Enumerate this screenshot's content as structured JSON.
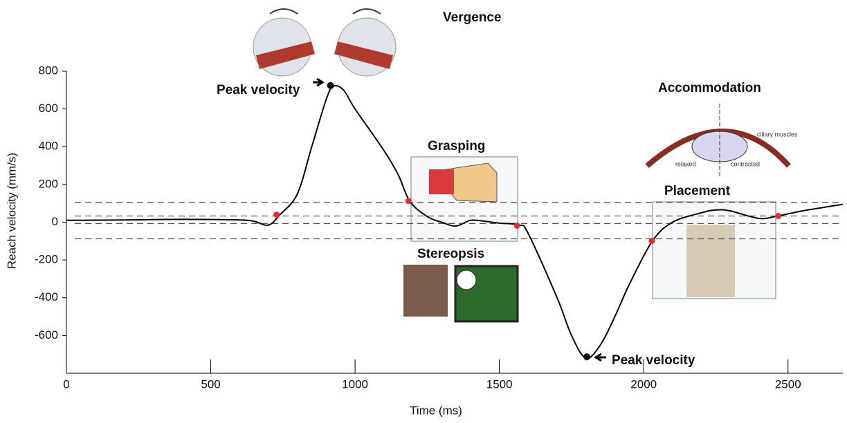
{
  "chart_data": {
    "type": "line",
    "xlabel": "Time (ms)",
    "ylabel": "Reach velocity (mm/s)",
    "xlim": [
      0,
      2690
    ],
    "ylim": [
      -800,
      800
    ],
    "xticks": [
      0,
      500,
      1000,
      1500,
      2000,
      2500
    ],
    "yticks": [
      800,
      600,
      400,
      200,
      0,
      -200,
      -400,
      -600
    ],
    "x": [
      0,
      200,
      400,
      600,
      650,
      700,
      740,
      800,
      850,
      900,
      925,
      960,
      1000,
      1100,
      1150,
      1190,
      1250,
      1300,
      1350,
      1400,
      1450,
      1500,
      1570,
      1600,
      1700,
      1750,
      1800,
      1850,
      1900,
      1950,
      2030,
      2100,
      2200,
      2250,
      2300,
      2400,
      2470,
      2550,
      2650,
      2690
    ],
    "series": [
      {
        "color": "#000000",
        "values": [
          10,
          12,
          15,
          12,
          5,
          -15,
          40,
          150,
          400,
          650,
          720,
          700,
          600,
          380,
          250,
          110,
          30,
          0,
          -20,
          10,
          5,
          -5,
          -15,
          -60,
          -400,
          -600,
          -720,
          -650,
          -500,
          -330,
          -100,
          0,
          50,
          65,
          60,
          20,
          35,
          60,
          85,
          95
        ]
      }
    ],
    "thresholds": [
      105,
      33,
      -7,
      -88
    ],
    "crossings": {
      "color": "#e03030",
      "x": [
        728,
        1185,
        1561,
        2028,
        2466
      ],
      "y": [
        40,
        113,
        -18,
        -99,
        33
      ]
    },
    "peaks": {
      "color": "#000000",
      "x": [
        915,
        1803
      ],
      "y": [
        724,
        -713
      ]
    },
    "annotations": [
      "Vergence",
      "Peak velocity",
      "Grasping",
      "Stereopsis",
      "Accommodation",
      "Placement",
      "Peak velocity",
      "relaxed",
      "contracted",
      "ciliary muscles"
    ]
  }
}
